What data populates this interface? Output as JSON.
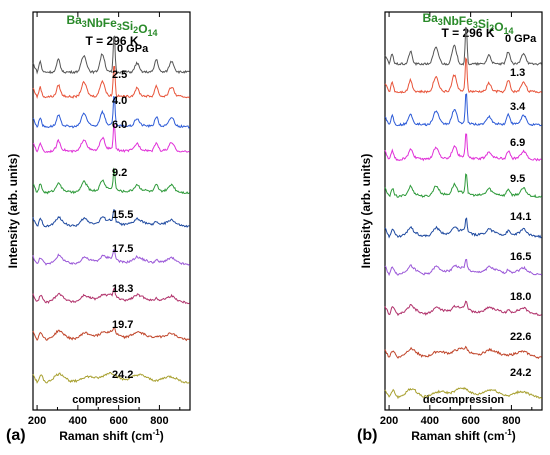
{
  "chart_data": [
    {
      "type": "line",
      "panel_label": "(a)",
      "title": "Ba3NbFe3Si2O14",
      "title_formula": [
        [
          "Ba",
          "3"
        ],
        [
          "NbFe",
          "3"
        ],
        [
          "Si",
          "2"
        ],
        [
          "O",
          "14"
        ]
      ],
      "temperature": "T = 296 K",
      "xlabel": "Raman shift (cm⁻¹)",
      "ylabel": "Intensity (arb. units)",
      "xlim": [
        180,
        950
      ],
      "xticks": [
        200,
        400,
        600,
        800
      ],
      "process_label": "compression",
      "y_ticks_shown": false,
      "series": [
        {
          "name": "0 GPa",
          "color": "#555555",
          "pressure": 0.0
        },
        {
          "name": "2.5",
          "color": "#e8543a",
          "pressure": 2.5
        },
        {
          "name": "4.0",
          "color": "#2d5bd7",
          "pressure": 4.0
        },
        {
          "name": "6.0",
          "color": "#e030d8",
          "pressure": 6.0
        },
        {
          "name": "9.2",
          "color": "#2e9a3a",
          "pressure": 9.2
        },
        {
          "name": "15.5",
          "color": "#1f4aa0",
          "pressure": 15.5
        },
        {
          "name": "17.5",
          "color": "#9b59d8",
          "pressure": 17.5
        },
        {
          "name": "18.3",
          "color": "#b0306a",
          "pressure": 18.3
        },
        {
          "name": "19.7",
          "color": "#c0452a",
          "pressure": 19.7
        },
        {
          "name": "24.2",
          "color": "#a8a030",
          "pressure": 24.2
        }
      ]
    },
    {
      "type": "line",
      "panel_label": "(b)",
      "title": "Ba3NbFe3Si2O14",
      "title_formula": [
        [
          "Ba",
          "3"
        ],
        [
          "NbFe",
          "3"
        ],
        [
          "Si",
          "2"
        ],
        [
          "O",
          "14"
        ]
      ],
      "temperature": "T = 296 K",
      "xlabel": "Raman shift (cm⁻¹)",
      "ylabel": "Intensity (arb. units)",
      "xlim": [
        180,
        950
      ],
      "xticks": [
        200,
        400,
        600,
        800
      ],
      "process_label": "decompression",
      "y_ticks_shown": false,
      "series": [
        {
          "name": "0 GPa",
          "color": "#555555",
          "pressure": 0.0
        },
        {
          "name": "1.3",
          "color": "#e8543a",
          "pressure": 1.3
        },
        {
          "name": "3.4",
          "color": "#2d5bd7",
          "pressure": 3.4
        },
        {
          "name": "6.9",
          "color": "#e030d8",
          "pressure": 6.9
        },
        {
          "name": "9.5",
          "color": "#2e9a3a",
          "pressure": 9.5
        },
        {
          "name": "14.1",
          "color": "#1f4aa0",
          "pressure": 14.1
        },
        {
          "name": "16.5",
          "color": "#9b59d8",
          "pressure": 16.5
        },
        {
          "name": "18.0",
          "color": "#b0306a",
          "pressure": 18.0
        },
        {
          "name": "22.6",
          "color": "#c0452a",
          "pressure": 22.6
        },
        {
          "name": "24.2",
          "color": "#a8a030",
          "pressure": 24.2
        }
      ]
    }
  ]
}
